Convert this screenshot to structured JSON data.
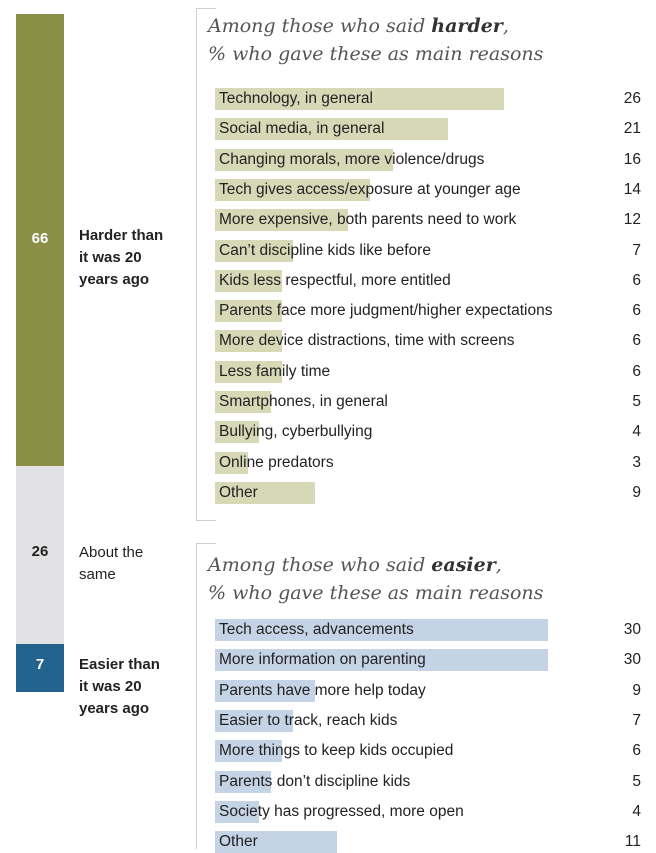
{
  "left_stack": [
    {
      "value": "66",
      "label_lines": [
        "Harder than",
        "it was 20",
        "years ago"
      ],
      "color": "#8a8e47",
      "text_color": "#ffffff",
      "bold_label": true
    },
    {
      "value": "26",
      "label_lines": [
        "About the",
        "same"
      ],
      "color": "#e2e2e4",
      "text_color": "#222222",
      "bold_label": false
    },
    {
      "value": "7",
      "label_lines": [
        "Easier than",
        "it was 20",
        "years ago"
      ],
      "color": "#25638f",
      "text_color": "#ffffff",
      "bold_label": true
    }
  ],
  "harder_panel": {
    "title_line1_prefix": "Among those who said ",
    "title_line1_bold": "harder",
    "title_line1_suffix": ",",
    "title_line2": "% who gave these as main reasons"
  },
  "easier_panel": {
    "title_line1_prefix": "Among those who said ",
    "title_line1_bold": "easier",
    "title_line1_suffix": ",",
    "title_line2": "% who gave these as main reasons"
  },
  "colors": {
    "harder_bar": "#d6d8b6",
    "easier_bar": "#c4d3e6"
  },
  "chart_data": [
    {
      "type": "bar",
      "categories": [
        "Harder than it was 20 years ago",
        "About the same",
        "Easier than it was 20 years ago"
      ],
      "values": [
        66,
        26,
        7
      ]
    },
    {
      "type": "bar",
      "title": "Among those who said harder, % who gave these as main reasons",
      "categories": [
        "Technology, in general",
        "Social media, in general",
        "Changing morals, more violence/drugs",
        "Tech gives access/exposure at younger age",
        "More expensive, both parents need to work",
        "Can’t discipline kids like before",
        "Kids less respectful, more entitled",
        "Parents face more judgment/higher expectations",
        "More device distractions, time with screens",
        "Less family time",
        "Smartphones, in general",
        "Bullying, cyberbullying",
        "Online predators",
        "Other"
      ],
      "values": [
        26,
        21,
        16,
        14,
        12,
        7,
        6,
        6,
        6,
        6,
        5,
        4,
        3,
        9
      ]
    },
    {
      "type": "bar",
      "title": "Among those who said easier, % who gave these as main reasons",
      "categories": [
        "Tech access, advancements",
        "More information on parenting",
        "Parents have more help today",
        "Easier to track, reach kids",
        "More things to keep kids occupied",
        "Parents don’t discipline kids",
        "Society has progressed, more open",
        "Other"
      ],
      "values": [
        30,
        30,
        9,
        7,
        6,
        5,
        4,
        11
      ]
    }
  ]
}
